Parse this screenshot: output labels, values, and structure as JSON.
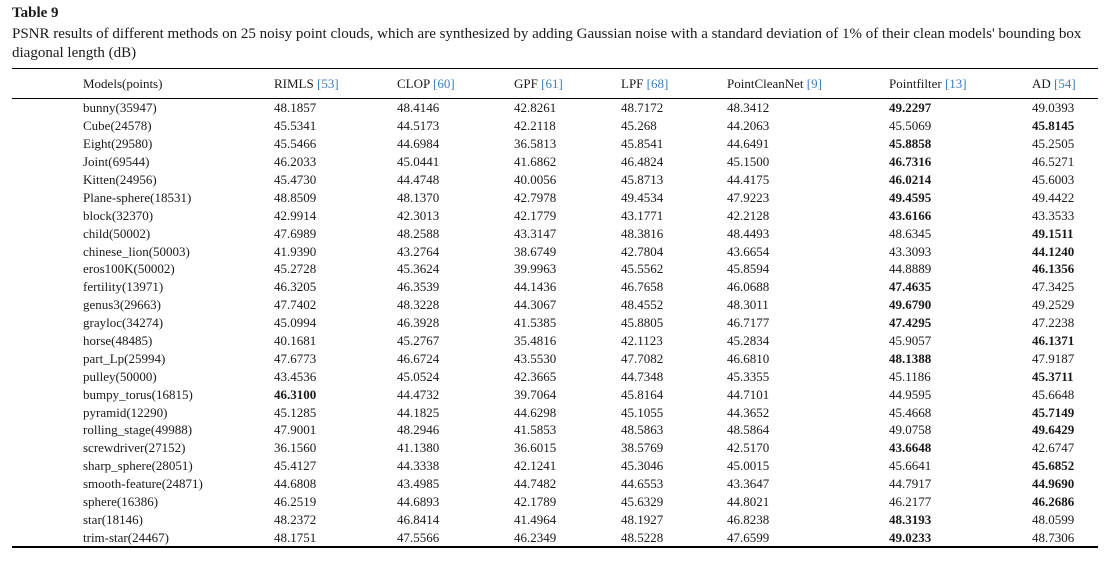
{
  "table_label": "Table 9",
  "caption": "PSNR results of different methods on 25 noisy point clouds, which are synthesized by adding Gaussian noise with a standard deviation of 1% of their clean models' bounding box diagonal length (dB)",
  "columns": [
    {
      "name": "Models(points)",
      "ref": ""
    },
    {
      "name": "RIMLS ",
      "ref": "[53]"
    },
    {
      "name": "CLOP ",
      "ref": "[60]"
    },
    {
      "name": "GPF ",
      "ref": "[61]"
    },
    {
      "name": "LPF ",
      "ref": "[68]"
    },
    {
      "name": "PointCleanNet ",
      "ref": "[9]"
    },
    {
      "name": "Pointfilter ",
      "ref": "[13]"
    },
    {
      "name": "AD ",
      "ref": "[54]"
    }
  ],
  "rows": [
    {
      "model": "bunny(35947)",
      "values": [
        "48.1857",
        "48.4146",
        "42.8261",
        "48.7172",
        "48.3412",
        "49.2297",
        "49.0393"
      ],
      "best": 5
    },
    {
      "model": "Cube(24578)",
      "values": [
        "45.5341",
        "44.5173",
        "42.2118",
        "45.268",
        "44.2063",
        "45.5069",
        "45.8145"
      ],
      "best": 6
    },
    {
      "model": "Eight(29580)",
      "values": [
        "45.5466",
        "44.6984",
        "36.5813",
        "45.8541",
        "44.6491",
        "45.8858",
        "45.2505"
      ],
      "best": 5
    },
    {
      "model": "Joint(69544)",
      "values": [
        "46.2033",
        "45.0441",
        "41.6862",
        "46.4824",
        "45.1500",
        "46.7316",
        "46.5271"
      ],
      "best": 5
    },
    {
      "model": "Kitten(24956)",
      "values": [
        "45.4730",
        "44.4748",
        "40.0056",
        "45.8713",
        "44.4175",
        "46.0214",
        "45.6003"
      ],
      "best": 5
    },
    {
      "model": "Plane-sphere(18531)",
      "values": [
        "48.8509",
        "48.1370",
        "42.7978",
        "49.4534",
        "47.9223",
        "49.4595",
        "49.4422"
      ],
      "best": 5
    },
    {
      "model": "block(32370)",
      "values": [
        "42.9914",
        "42.3013",
        "42.1779",
        "43.1771",
        "42.2128",
        "43.6166",
        "43.3533"
      ],
      "best": 5
    },
    {
      "model": "child(50002)",
      "values": [
        "47.6989",
        "48.2588",
        "43.3147",
        "48.3816",
        "48.4493",
        "48.6345",
        "49.1511"
      ],
      "best": 6
    },
    {
      "model": "chinese_lion(50003)",
      "values": [
        "41.9390",
        "43.2764",
        "38.6749",
        "42.7804",
        "43.6654",
        "43.3093",
        "44.1240"
      ],
      "best": 6
    },
    {
      "model": "eros100K(50002)",
      "values": [
        "45.2728",
        "45.3624",
        "39.9963",
        "45.5562",
        "45.8594",
        "44.8889",
        "46.1356"
      ],
      "best": 6
    },
    {
      "model": "fertility(13971)",
      "values": [
        "46.3205",
        "46.3539",
        "44.1436",
        "46.7658",
        "46.0688",
        "47.4635",
        "47.3425"
      ],
      "best": 5
    },
    {
      "model": "genus3(29663)",
      "values": [
        "47.7402",
        "48.3228",
        "44.3067",
        "48.4552",
        "48.3011",
        "49.6790",
        "49.2529"
      ],
      "best": 5
    },
    {
      "model": "grayloc(34274)",
      "values": [
        "45.0994",
        "46.3928",
        "41.5385",
        "45.8805",
        "46.7177",
        "47.4295",
        "47.2238"
      ],
      "best": 5
    },
    {
      "model": "horse(48485)",
      "values": [
        "40.1681",
        "45.2767",
        "35.4816",
        "42.1123",
        "45.2834",
        "45.9057",
        "46.1371"
      ],
      "best": 6
    },
    {
      "model": "part_Lp(25994)",
      "values": [
        "47.6773",
        "46.6724",
        "43.5530",
        "47.7082",
        "46.6810",
        "48.1388",
        "47.9187"
      ],
      "best": 5
    },
    {
      "model": "pulley(50000)",
      "values": [
        "43.4536",
        "45.0524",
        "42.3665",
        "44.7348",
        "45.3355",
        "45.1186",
        "45.3711"
      ],
      "best": 6
    },
    {
      "model": "bumpy_torus(16815)",
      "values": [
        "46.3100",
        "44.4732",
        "39.7064",
        "45.8164",
        "44.7101",
        "44.9595",
        "45.6648"
      ],
      "best": 0
    },
    {
      "model": "pyramid(12290)",
      "values": [
        "45.1285",
        "44.1825",
        "44.6298",
        "45.1055",
        "44.3652",
        "45.4668",
        "45.7149"
      ],
      "best": 6
    },
    {
      "model": "rolling_stage(49988)",
      "values": [
        "47.9001",
        "48.2946",
        "41.5853",
        "48.5863",
        "48.5864",
        "49.0758",
        "49.6429"
      ],
      "best": 6
    },
    {
      "model": "screwdriver(27152)",
      "values": [
        "36.1560",
        "41.1380",
        "36.6015",
        "38.5769",
        "42.5170",
        "43.6648",
        "42.6747"
      ],
      "best": 5
    },
    {
      "model": "sharp_sphere(28051)",
      "values": [
        "45.4127",
        "44.3338",
        "42.1241",
        "45.3046",
        "45.0015",
        "45.6641",
        "45.6852"
      ],
      "best": 6
    },
    {
      "model": "smooth-feature(24871)",
      "values": [
        "44.6808",
        "43.4985",
        "44.7482",
        "44.6553",
        "43.3647",
        "44.7917",
        "44.9690"
      ],
      "best": 6
    },
    {
      "model": "sphere(16386)",
      "values": [
        "46.2519",
        "44.6893",
        "42.1789",
        "45.6329",
        "44.8021",
        "46.2177",
        "46.2686"
      ],
      "best": 6
    },
    {
      "model": "star(18146)",
      "values": [
        "48.2372",
        "46.8414",
        "41.4964",
        "48.1927",
        "46.8238",
        "48.3193",
        "48.0599"
      ],
      "best": 5
    },
    {
      "model": "trim-star(24467)",
      "values": [
        "48.1751",
        "47.5566",
        "46.2349",
        "48.5228",
        "47.6599",
        "49.0233",
        "48.7306"
      ],
      "best": 5
    }
  ]
}
